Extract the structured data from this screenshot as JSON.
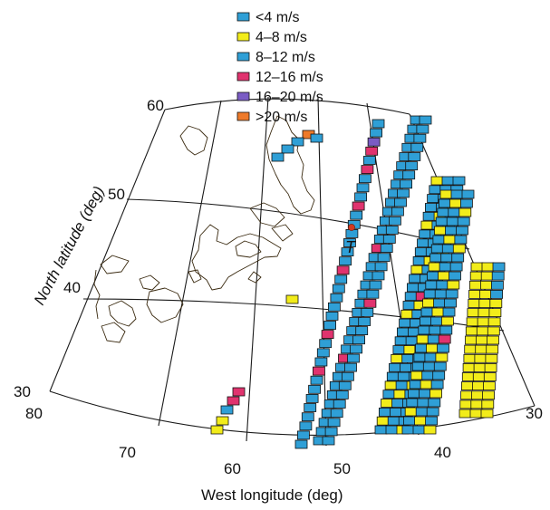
{
  "legend": {
    "items": [
      {
        "label": "<4 m/s",
        "color": "#2f9fd6"
      },
      {
        "label": "4–8 m/s",
        "color": "#f2ec1a"
      },
      {
        "label": "8–12 m/s",
        "color": "#2f9fd6"
      },
      {
        "label": "12–16 m/s",
        "color": "#e0336e"
      },
      {
        "label": "16–20 m/s",
        "color": "#7a5cc4"
      },
      {
        "label": ">20 m/s",
        "color": "#ee7a2a"
      }
    ]
  },
  "axes": {
    "ylabel": "North latitude (deg)",
    "xlabel": "West longitude (deg)",
    "lat_ticks": [
      "60",
      "50",
      "40",
      "30"
    ],
    "lon_ticks": [
      "80",
      "70",
      "60",
      "50",
      "40",
      "30"
    ]
  },
  "marker": {
    "label": "T",
    "color": "#d33a1f"
  },
  "map_features": {
    "icon": "coastline-north-atlantic-icon"
  }
}
